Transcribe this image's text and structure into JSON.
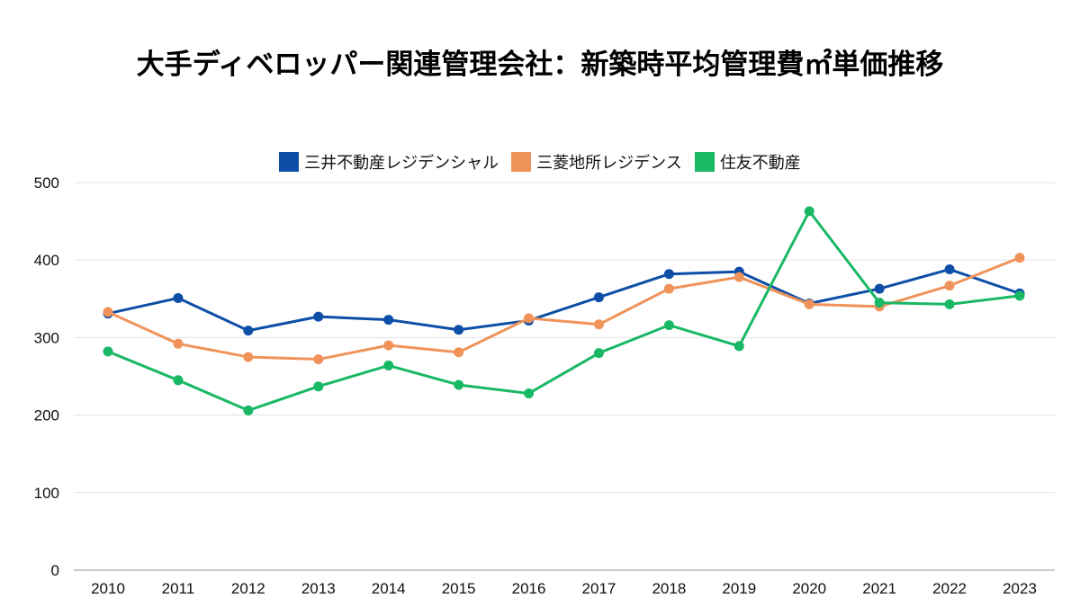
{
  "chart_data": {
    "type": "line",
    "title": "大手ディベロッパー関連管理会社：新築時平均管理費㎡単価推移",
    "categories": [
      "2010",
      "2011",
      "2012",
      "2013",
      "2014",
      "2015",
      "2016",
      "2017",
      "2018",
      "2019",
      "2020",
      "2021",
      "2022",
      "2023"
    ],
    "ylim": [
      0,
      500
    ],
    "yticks": [
      0,
      100,
      200,
      300,
      400,
      500
    ],
    "ytick_labels": [
      "0",
      "100",
      "200",
      "300",
      "400",
      "500"
    ],
    "grid": true,
    "legend_position": "top",
    "series": [
      {
        "name": "三井不動産レジデンシャル",
        "color": "#0d4ea6",
        "values": [
          331,
          351,
          309,
          327,
          323,
          310,
          322,
          352,
          382,
          385,
          344,
          363,
          388,
          357
        ]
      },
      {
        "name": "三菱地所レジデンス",
        "color": "#f0935a",
        "values": [
          333,
          292,
          275,
          272,
          290,
          281,
          325,
          317,
          363,
          378,
          343,
          340,
          367,
          403
        ]
      },
      {
        "name": "住友不動産",
        "color": "#19b865",
        "values": [
          282,
          245,
          206,
          237,
          264,
          239,
          228,
          280,
          316,
          289,
          463,
          345,
          343,
          354
        ]
      }
    ]
  }
}
